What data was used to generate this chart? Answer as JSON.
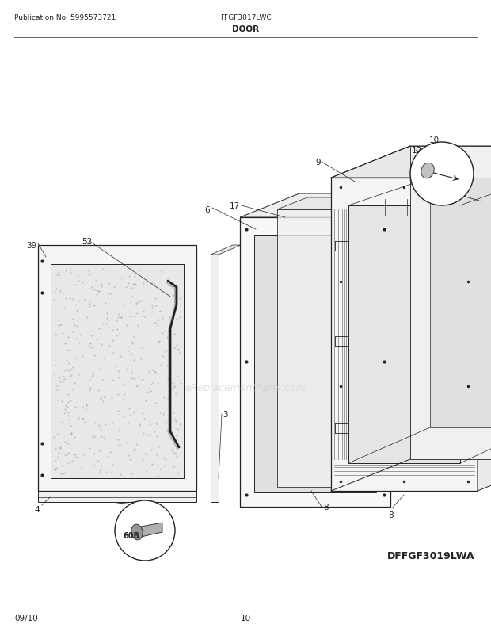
{
  "pub_no": "Publication No: 5995573721",
  "model": "FFGF3017LWC",
  "section": "DOOR",
  "diagram_id": "DFFGF3019LWA",
  "watermark": "eReplacementParts.com",
  "date": "09/10",
  "page": "10",
  "bg_color": "#ffffff",
  "line_color": "#222222"
}
